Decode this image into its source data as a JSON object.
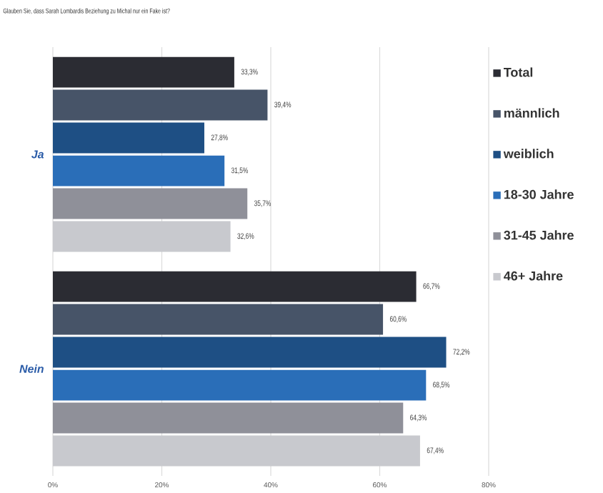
{
  "chart_data": {
    "type": "bar",
    "orientation": "horizontal",
    "title": "Glauben Sie, dass Sarah Lombardis Beziehung zu Michal nur ein Fake ist?",
    "categories": [
      "Ja",
      "Nein"
    ],
    "series": [
      {
        "name": "Total",
        "color": "#2b2c33",
        "values": [
          33.3,
          66.7
        ],
        "value_labels": [
          "33,3%",
          "66,7%"
        ]
      },
      {
        "name": "männlich",
        "color": "#475468",
        "values": [
          39.4,
          60.6
        ],
        "value_labels": [
          "39,4%",
          "60,6%"
        ]
      },
      {
        "name": "weiblich",
        "color": "#1e4f84",
        "values": [
          27.8,
          72.2
        ],
        "value_labels": [
          "27,8%",
          "72,2%"
        ]
      },
      {
        "name": "18-30 Jahre",
        "color": "#2a6eb8",
        "values": [
          31.5,
          68.5
        ],
        "value_labels": [
          "31,5%",
          "68,5%"
        ]
      },
      {
        "name": "31-45 Jahre",
        "color": "#8f9099",
        "values": [
          35.7,
          64.3
        ],
        "value_labels": [
          "35,7%",
          "64,3%"
        ]
      },
      {
        "name": "46+ Jahre",
        "color": "#c8c9ce",
        "values": [
          32.6,
          67.4
        ],
        "value_labels": [
          "32,6%",
          "67,4%"
        ]
      }
    ],
    "xlim": [
      0,
      80
    ],
    "xticks": [
      {
        "value": 0,
        "label": "0%"
      },
      {
        "value": 20,
        "label": "20%"
      },
      {
        "value": 40,
        "label": "40%"
      },
      {
        "value": 60,
        "label": "60%"
      },
      {
        "value": 80,
        "label": "80%"
      }
    ],
    "grid": "x",
    "legend": "top right"
  }
}
